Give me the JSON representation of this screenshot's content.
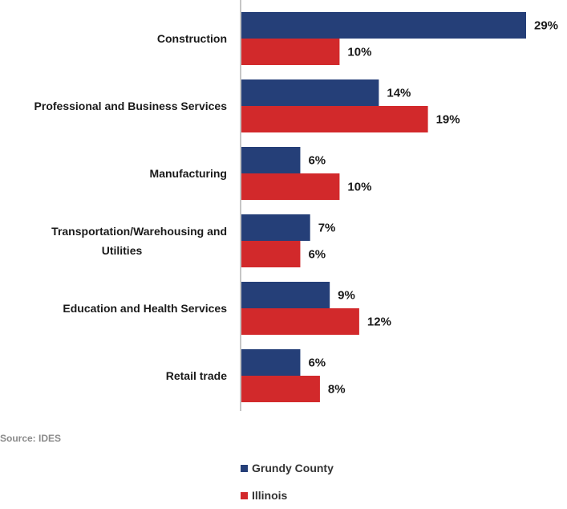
{
  "source": "Source: IDES",
  "colors": {
    "grundy": "#253f78",
    "illinois": "#d2292b",
    "axis": "#8c8c8c"
  },
  "chart_data": {
    "type": "bar",
    "orientation": "horizontal",
    "categories": [
      "Construction",
      "Professional and Business Services",
      "Manufacturing",
      "Transportation/Warehousing and Utilities",
      "Education and Health Services",
      "Retail trade"
    ],
    "category_lines": [
      [
        "Construction"
      ],
      [
        "Professional and Business Services"
      ],
      [
        "Manufacturing"
      ],
      [
        "Transportation/Warehousing and",
        "Utilities"
      ],
      [
        "Education and Health Services"
      ],
      [
        "Retail trade"
      ]
    ],
    "series": [
      {
        "name": "Grundy County",
        "values": [
          29,
          14,
          6,
          7,
          9,
          6
        ],
        "labels": [
          "29%",
          "14%",
          "6%",
          "7%",
          "9%",
          "6%"
        ]
      },
      {
        "name": "Illinois",
        "values": [
          10,
          19,
          10,
          6,
          12,
          8
        ],
        "labels": [
          "10%",
          "19%",
          "10%",
          "6%",
          "12%",
          "8%"
        ]
      }
    ],
    "xlim": [
      0,
      30
    ],
    "grid": false,
    "legend_position": "bottom"
  }
}
